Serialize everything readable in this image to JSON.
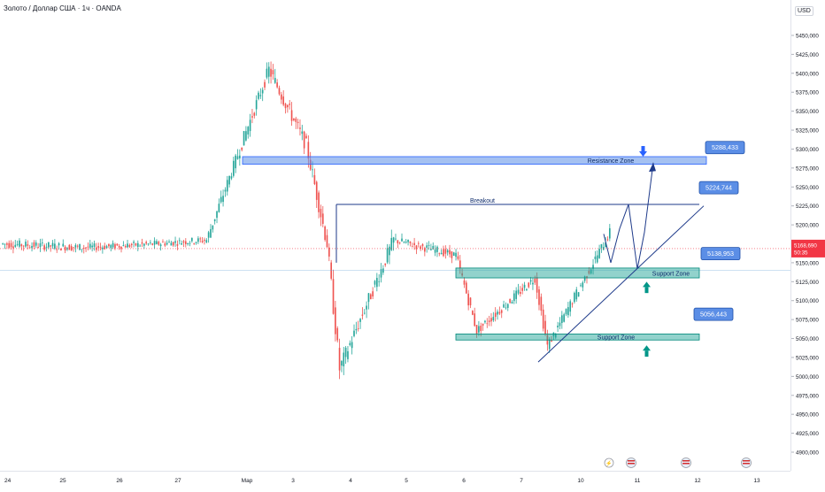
{
  "header": {
    "symbol_title": "Золото / Доллар США · 1ч · OANDA"
  },
  "price_axis": {
    "currency": "USD",
    "ticks": [
      "5450,000",
      "5425,000",
      "5400,000",
      "5375,000",
      "5350,000",
      "5325,000",
      "5300,000",
      "5275,000",
      "5250,000",
      "5225,000",
      "5200,000",
      "5175,000",
      "5150,000",
      "5125,000",
      "5100,000",
      "5075,000",
      "5050,000",
      "5025,000",
      "5000,000",
      "4975,000",
      "4950,000",
      "4925,000",
      "4900,000"
    ],
    "current_price": "5168,690",
    "countdown": "50:35"
  },
  "time_axis": {
    "labels": [
      "24",
      "25",
      "26",
      "27",
      "Мар",
      "3",
      "4",
      "5",
      "6",
      "7",
      "10",
      "11",
      "12",
      "13"
    ]
  },
  "annotations": {
    "resistance_zone": "Resistance Zone",
    "support_zone_upper": "Support Zone",
    "support_zone_lower": "Support Zone",
    "breakout": "Breakout",
    "target_upper": "5288,433",
    "breakout_level": "5224,744",
    "support_level_upper": "5138,953",
    "support_level_lower": "5056,443"
  },
  "colors": {
    "up": "#26a69a",
    "down": "#ef5350",
    "zone_blue": "#5b8ee6",
    "zone_green": "#26a69a",
    "line": "#1e3a8a",
    "price_tag": "#f23645"
  },
  "chart_data": {
    "type": "candlestick",
    "title": "Золото / Доллар США · 1ч · OANDA",
    "ylim": [
      4885,
      5475
    ],
    "x_tick_labels": [
      "24",
      "25",
      "26",
      "27",
      "Мар",
      "3",
      "4",
      "5",
      "6",
      "7",
      "10",
      "11",
      "12",
      "13"
    ],
    "segments": [
      {
        "from": 5175,
        "to": 5170,
        "vol": 14,
        "n": 40
      },
      {
        "from": 5170,
        "to": 5175,
        "vol": 12,
        "n": 35
      },
      {
        "from": 5175,
        "to": 5180,
        "vol": 12,
        "n": 24
      },
      {
        "from": 5180,
        "to": 5285,
        "vol": 18,
        "n": 14
      },
      {
        "from": 5285,
        "to": 5405,
        "vol": 22,
        "n": 16
      },
      {
        "from": 5405,
        "to": 5305,
        "vol": 24,
        "n": 18
      },
      {
        "from": 5305,
        "to": 5175,
        "vol": 26,
        "n": 10
      },
      {
        "from": 5175,
        "to": 5010,
        "vol": 30,
        "n": 6
      },
      {
        "from": 5010,
        "to": 5180,
        "vol": 24,
        "n": 26
      },
      {
        "from": 5180,
        "to": 5160,
        "vol": 14,
        "n": 30
      },
      {
        "from": 5160,
        "to": 5060,
        "vol": 16,
        "n": 10
      },
      {
        "from": 5060,
        "to": 5130,
        "vol": 16,
        "n": 28
      },
      {
        "from": 5130,
        "to": 5040,
        "vol": 18,
        "n": 6
      },
      {
        "from": 5040,
        "to": 5190,
        "vol": 16,
        "n": 30
      }
    ],
    "last_price": 5168.69,
    "levels": {
      "resistance_zone": [
        5280,
        5290
      ],
      "breakout_line": 5227,
      "support_zone_upper": [
        5130,
        5143
      ],
      "support_zone_lower": [
        5048,
        5056
      ],
      "target": 5288.433,
      "breakout_target": 5224.744,
      "support_upper_label": 5138.953,
      "support_lower_label": 5056.443
    },
    "projection_path": [
      [
        5168,
        5190
      ],
      [
        5190,
        5150
      ],
      [
        5150,
        5228
      ],
      [
        5228,
        5155
      ],
      [
        5155,
        5190
      ],
      [
        5190,
        5140
      ],
      [
        5140,
        5280
      ]
    ]
  }
}
